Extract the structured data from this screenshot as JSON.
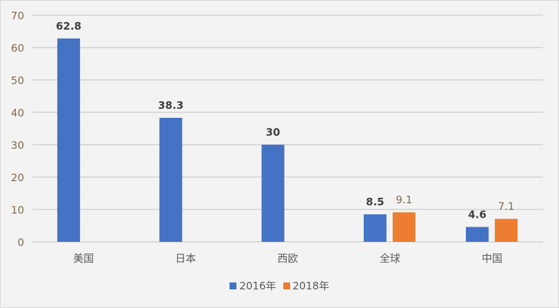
{
  "chart_data": {
    "type": "bar",
    "categories": [
      "美国",
      "日本",
      "西欧",
      "全球",
      "中国"
    ],
    "series": [
      {
        "name": "2016年",
        "values": [
          62.8,
          38.3,
          30,
          8.5,
          4.6
        ],
        "color": "#4472c4"
      },
      {
        "name": "2018年",
        "values": [
          null,
          null,
          null,
          9.1,
          7.1
        ],
        "color": "#ed7d31"
      }
    ],
    "ylim": [
      0,
      70
    ],
    "yticks": [
      0,
      10,
      20,
      30,
      40,
      50,
      60,
      70
    ],
    "grid": true,
    "legend": "bottom",
    "title": "",
    "xlabel": "",
    "ylabel": ""
  }
}
